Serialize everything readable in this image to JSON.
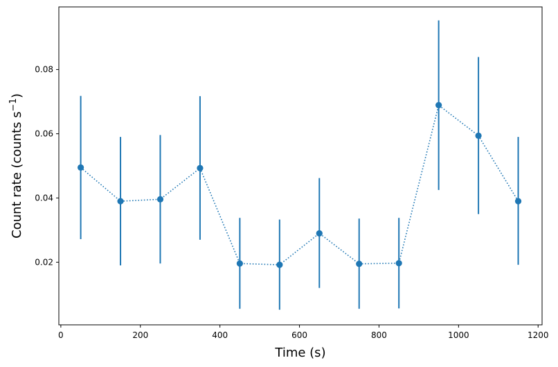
{
  "chart_data": {
    "type": "line",
    "title": "",
    "xlabel": "Time (s)",
    "ylabel_main": "Count rate (counts s",
    "ylabel_sup": "−1",
    "ylabel_close": ")",
    "xlim": [
      -5,
      1210
    ],
    "ylim": [
      0.0005,
      0.0995
    ],
    "xticks": [
      0,
      200,
      400,
      600,
      800,
      1000,
      1200
    ],
    "xtick_labels": [
      "0",
      "200",
      "400",
      "600",
      "800",
      "1000",
      "1200"
    ],
    "yticks": [
      0.02,
      0.04,
      0.06,
      0.08
    ],
    "ytick_labels": [
      "0.02",
      "0.04",
      "0.06",
      "0.08"
    ],
    "grid": false,
    "series": [
      {
        "color": "#1f77b4",
        "line_style": "dotted",
        "marker": "circle",
        "x": [
          50,
          150,
          250,
          350,
          450,
          550,
          650,
          750,
          850,
          950,
          1050,
          1150
        ],
        "y": [
          0.0495,
          0.039,
          0.0396,
          0.0493,
          0.0196,
          0.0192,
          0.029,
          0.0195,
          0.0197,
          0.0689,
          0.0594,
          0.039
        ],
        "yerr_low": [
          0.0272,
          0.019,
          0.0196,
          0.027,
          0.0055,
          0.0052,
          0.012,
          0.0055,
          0.0056,
          0.0425,
          0.035,
          0.0192
        ],
        "yerr_high": [
          0.0718,
          0.059,
          0.0596,
          0.0717,
          0.0338,
          0.0333,
          0.0462,
          0.0336,
          0.0338,
          0.0953,
          0.0839,
          0.059
        ]
      }
    ]
  }
}
